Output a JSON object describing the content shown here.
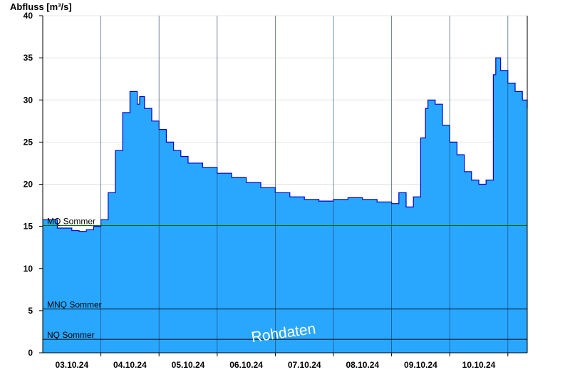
{
  "chart_data": {
    "type": "area",
    "ylabel": "Abfluss [m³/s]",
    "ylim": [
      0,
      40
    ],
    "yticks": [
      0,
      5,
      10,
      15,
      20,
      25,
      30,
      35,
      40
    ],
    "xlim": [
      "02.10.24 12:00",
      "10.10.24 20:00"
    ],
    "x_tick_labels": [
      "03.10.24",
      "04.10.24",
      "05.10.24",
      "06.10.24",
      "07.10.24",
      "08.10.24",
      "09.10.24",
      "10.10.24"
    ],
    "day_boundaries": [
      "03.10.24 12:00",
      "04.10.24 12:00",
      "05.10.24 12:00",
      "06.10.24 12:00",
      "07.10.24 12:00",
      "08.10.24 12:00",
      "09.10.24 12:00",
      "10.10.24 12:00"
    ],
    "grid": "horizontal",
    "fill_color": "#29a7ff",
    "line_color": "#0000cc",
    "reference_lines": [
      {
        "label": "MQ Sommer",
        "value": 15.1,
        "color": "#006600"
      },
      {
        "label": "MNQ Sommer",
        "value": 5.2,
        "color": "#000000"
      },
      {
        "label": "NQ Sommer",
        "value": 1.6,
        "color": "#000000"
      }
    ],
    "watermark": "Rohdaten",
    "series": [
      {
        "x": [
          "02.10.24 12:00",
          "02.10.24 18:00",
          "03.10.24 00:00",
          "03.10.24 03:00",
          "03.10.24 06:00",
          "03.10.24 09:00",
          "03.10.24 12:00",
          "03.10.24 15:00",
          "03.10.24 18:00",
          "03.10.24 21:00",
          "04.10.24 00:00",
          "04.10.24 03:00",
          "04.10.24 04:00",
          "04.10.24 06:00",
          "04.10.24 09:00",
          "04.10.24 12:00",
          "04.10.24 15:00",
          "04.10.24 18:00",
          "04.10.24 21:00",
          "05.10.24 00:00",
          "05.10.24 06:00",
          "05.10.24 12:00",
          "05.10.24 18:00",
          "06.10.24 00:00",
          "06.10.24 06:00",
          "06.10.24 12:00",
          "06.10.24 18:00",
          "07.10.24 00:00",
          "07.10.24 06:00",
          "07.10.24 12:00",
          "07.10.24 18:00",
          "08.10.24 00:00",
          "08.10.24 06:00",
          "08.10.24 12:00",
          "08.10.24 15:00",
          "08.10.24 18:00",
          "08.10.24 21:00",
          "09.10.24 00:00",
          "09.10.24 02:00",
          "09.10.24 03:00",
          "09.10.24 06:00",
          "09.10.24 09:00",
          "09.10.24 12:00",
          "09.10.24 15:00",
          "09.10.24 18:00",
          "09.10.24 21:00",
          "10.10.24 00:00",
          "10.10.24 03:00",
          "10.10.24 06:00",
          "10.10.24 07:00",
          "10.10.24 09:00",
          "10.10.24 12:00",
          "10.10.24 15:00",
          "10.10.24 18:00",
          "10.10.24 20:00"
        ],
        "values": [
          15.8,
          14.8,
          14.5,
          14.4,
          14.6,
          15.0,
          15.8,
          19.0,
          24.0,
          28.5,
          31.0,
          29.5,
          30.4,
          29.0,
          27.5,
          26.5,
          25.0,
          24.0,
          23.3,
          22.5,
          22.0,
          21.3,
          20.8,
          20.2,
          19.6,
          19.0,
          18.5,
          18.2,
          18.0,
          18.2,
          18.4,
          18.2,
          17.9,
          17.7,
          19.0,
          17.3,
          18.5,
          25.5,
          29.0,
          30.0,
          29.5,
          27.0,
          25.0,
          23.5,
          21.5,
          20.5,
          20.0,
          20.5,
          33.0,
          35.0,
          33.5,
          32.0,
          31.0,
          30.0,
          29.0
        ]
      }
    ]
  }
}
